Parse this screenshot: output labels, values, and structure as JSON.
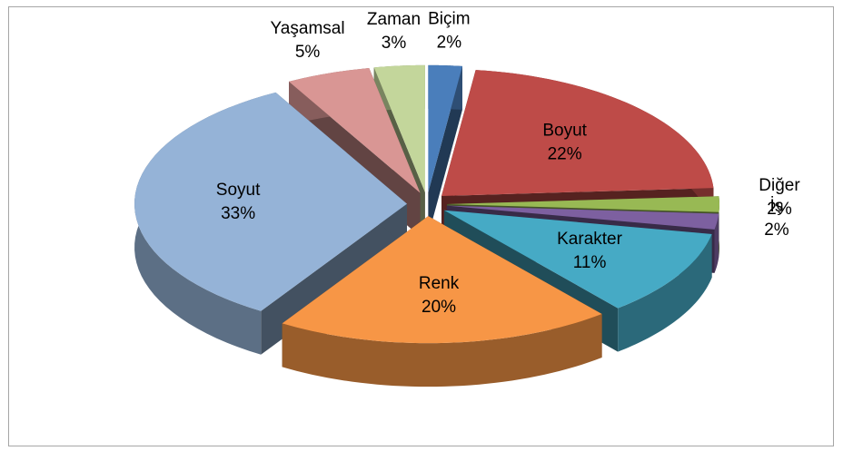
{
  "chart_data": {
    "type": "pie3d",
    "categories": [
      "Biçim",
      "Boyut",
      "Diğer",
      "İş",
      "Karakter",
      "Renk",
      "Soyut",
      "Yaşamsal",
      "Zaman"
    ],
    "values": [
      2,
      22,
      2,
      2,
      11,
      20,
      33,
      5,
      3
    ],
    "value_labels": [
      "2%",
      "22%",
      "2%",
      "2%",
      "11%",
      "20%",
      "33%",
      "5%",
      "3%"
    ],
    "colors": [
      "#4a7ebb",
      "#be4b48",
      "#98b954",
      "#7d60a0",
      "#46aac5",
      "#f79646",
      "#95b3d7",
      "#d99694",
      "#c3d69b"
    ]
  }
}
